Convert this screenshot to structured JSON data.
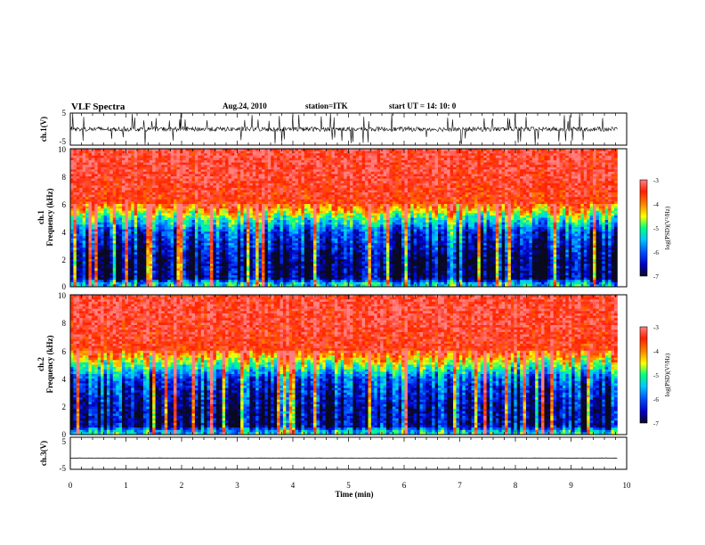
{
  "header": {
    "title": "VLF Spectra",
    "date": "Aug.24, 2010",
    "station": "station=ITK",
    "start": "start UT =  14: 10: 0"
  },
  "chart_data": [
    {
      "type": "line",
      "name": "ch1-waveform",
      "ylabel": "ch.1(V)",
      "ylim": [
        -5,
        5
      ],
      "yticks": [
        "5",
        "-5"
      ],
      "xlim": [
        0,
        10
      ],
      "baseline": 0,
      "noise_amplitude": 0.7,
      "spike_amplitude": 5
    },
    {
      "type": "heatmap",
      "name": "ch1-spectrogram",
      "ylabel": "ch.1\nFrequency (kHz)",
      "ylim": [
        0,
        10
      ],
      "yticks": [
        "0",
        "2",
        "4",
        "6",
        "8",
        "10"
      ],
      "xlim": [
        0,
        9.83
      ],
      "colorbar": {
        "label": "log(PSD)(V²/Hz)",
        "range": [
          -7,
          -3
        ],
        "ticks": [
          "-3",
          "-4",
          "-5",
          "-6",
          "-7"
        ]
      },
      "profile": {
        "freq_khz": [
          0,
          0.3,
          0.6,
          2,
          4,
          5,
          6,
          8,
          10
        ],
        "log_psd": [
          -5.2,
          -5.6,
          -6.8,
          -6.8,
          -6.1,
          -5.0,
          -3.6,
          -3.3,
          -3.3
        ]
      }
    },
    {
      "type": "heatmap",
      "name": "ch2-spectrogram",
      "ylabel": "ch.2\nFrequency (kHz)",
      "ylim": [
        0,
        10
      ],
      "yticks": [
        "0",
        "2",
        "4",
        "6",
        "8",
        "10"
      ],
      "xlim": [
        0,
        9.83
      ],
      "colorbar": {
        "label": "log(PSD)(V²/Hz)",
        "range": [
          -7,
          -3
        ],
        "ticks": [
          "-3",
          "-4",
          "-5",
          "-6",
          "-7"
        ]
      },
      "profile": {
        "freq_khz": [
          0,
          0.3,
          0.6,
          2,
          4,
          5,
          6,
          8,
          10
        ],
        "log_psd": [
          -5.2,
          -5.6,
          -6.6,
          -6.6,
          -6.0,
          -4.8,
          -3.5,
          -3.3,
          -3.3
        ]
      }
    },
    {
      "type": "line",
      "name": "ch3-waveform",
      "ylabel": "ch.3(V)",
      "ylim": [
        -5,
        5
      ],
      "yticks": [
        "5",
        "-5"
      ],
      "xlim": [
        0,
        10
      ],
      "baseline": -1.5,
      "noise_amplitude": 0.05,
      "xlabel": "Time (min)",
      "xticks": [
        "0",
        "1",
        "2",
        "3",
        "4",
        "5",
        "6",
        "7",
        "8",
        "9",
        "10"
      ]
    }
  ],
  "colors": {
    "colormap": [
      "#0a0a1e",
      "#0000c8",
      "#0050ff",
      "#00c8ff",
      "#00ff80",
      "#ffff00",
      "#ff8000",
      "#ff2000",
      "#ff8080"
    ]
  }
}
